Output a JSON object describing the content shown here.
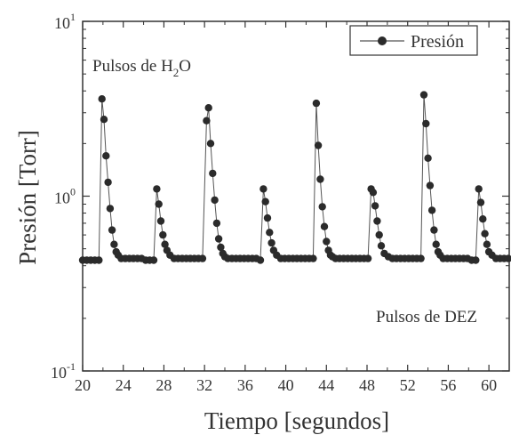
{
  "chart_data": {
    "type": "line",
    "xlabel": "Tiempo [segundos]",
    "ylabel": "Presión [Torr]",
    "xlim": [
      20,
      62
    ],
    "ylim": [
      0.1,
      10
    ],
    "yscale": "log",
    "xticks": [
      20,
      24,
      28,
      32,
      36,
      40,
      44,
      48,
      52,
      56,
      60
    ],
    "yticks": [
      {
        "value": 10,
        "base": "10",
        "exp": "1"
      },
      {
        "value": 1,
        "base": "10",
        "exp": "0"
      },
      {
        "value": 0.1,
        "base": "10",
        "exp": "-1"
      }
    ],
    "legend": {
      "label": "Presión",
      "position": "top-right"
    },
    "annotations": [
      {
        "text": "Pulsos de H",
        "sub": "2",
        "text2": "O"
      },
      {
        "text": "Pulsos de DEZ"
      }
    ],
    "grid": false,
    "series": [
      {
        "name": "Presión",
        "marker": "circle",
        "color": "#2b2b2b",
        "x": [
          20.0,
          20.4,
          20.8,
          21.2,
          21.6,
          21.9,
          22.1,
          22.3,
          22.5,
          22.7,
          22.9,
          23.1,
          23.3,
          23.5,
          23.8,
          24.2,
          24.6,
          25.0,
          25.4,
          25.8,
          26.2,
          26.6,
          27.0,
          27.3,
          27.5,
          27.7,
          27.9,
          28.1,
          28.3,
          28.6,
          29.0,
          29.4,
          29.8,
          30.2,
          30.6,
          31.0,
          31.4,
          31.8,
          32.2,
          32.4,
          32.6,
          32.8,
          33.0,
          33.2,
          33.4,
          33.6,
          33.8,
          34.0,
          34.3,
          34.7,
          35.1,
          35.5,
          35.9,
          36.3,
          36.7,
          37.1,
          37.5,
          37.8,
          38.0,
          38.2,
          38.4,
          38.6,
          38.8,
          39.1,
          39.5,
          39.9,
          40.3,
          40.7,
          41.1,
          41.5,
          41.9,
          42.3,
          42.7,
          43.0,
          43.2,
          43.4,
          43.6,
          43.8,
          44.0,
          44.2,
          44.4,
          44.6,
          44.9,
          45.3,
          45.7,
          46.1,
          46.5,
          46.9,
          47.3,
          47.7,
          48.1,
          48.4,
          48.6,
          48.8,
          49.0,
          49.2,
          49.4,
          49.7,
          50.1,
          50.5,
          50.9,
          51.3,
          51.7,
          52.1,
          52.5,
          52.9,
          53.3,
          53.6,
          53.8,
          54.0,
          54.2,
          54.4,
          54.6,
          54.8,
          55.0,
          55.2,
          55.5,
          55.9,
          56.3,
          56.7,
          57.1,
          57.5,
          57.9,
          58.3,
          58.7,
          59.0,
          59.2,
          59.4,
          59.6,
          59.8,
          60.0,
          60.3,
          60.7,
          61.1,
          61.5,
          61.9
        ],
        "y": [
          0.43,
          0.43,
          0.43,
          0.43,
          0.43,
          3.6,
          2.75,
          1.7,
          1.2,
          0.85,
          0.64,
          0.53,
          0.48,
          0.46,
          0.44,
          0.44,
          0.44,
          0.44,
          0.44,
          0.44,
          0.43,
          0.43,
          0.43,
          1.1,
          0.9,
          0.72,
          0.6,
          0.53,
          0.49,
          0.46,
          0.44,
          0.44,
          0.44,
          0.44,
          0.44,
          0.44,
          0.44,
          0.44,
          2.7,
          3.2,
          2.0,
          1.35,
          0.95,
          0.7,
          0.57,
          0.51,
          0.47,
          0.45,
          0.44,
          0.44,
          0.44,
          0.44,
          0.44,
          0.44,
          0.44,
          0.44,
          0.43,
          1.1,
          0.93,
          0.75,
          0.62,
          0.54,
          0.49,
          0.46,
          0.44,
          0.44,
          0.44,
          0.44,
          0.44,
          0.44,
          0.44,
          0.44,
          0.44,
          3.4,
          1.95,
          1.25,
          0.87,
          0.67,
          0.55,
          0.49,
          0.46,
          0.45,
          0.44,
          0.44,
          0.44,
          0.44,
          0.44,
          0.44,
          0.44,
          0.44,
          0.44,
          1.1,
          1.05,
          0.88,
          0.72,
          0.6,
          0.52,
          0.47,
          0.45,
          0.44,
          0.44,
          0.44,
          0.44,
          0.44,
          0.44,
          0.44,
          0.44,
          3.8,
          2.6,
          1.65,
          1.15,
          0.83,
          0.64,
          0.53,
          0.48,
          0.46,
          0.44,
          0.44,
          0.44,
          0.44,
          0.44,
          0.44,
          0.44,
          0.43,
          0.43,
          1.1,
          0.92,
          0.74,
          0.61,
          0.53,
          0.48,
          0.46,
          0.44,
          0.44,
          0.44,
          0.44
        ]
      }
    ]
  }
}
